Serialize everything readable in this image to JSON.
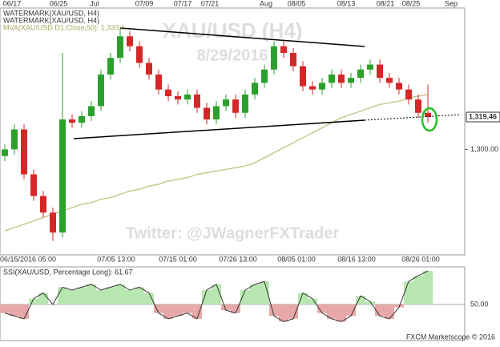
{
  "chart_data": {
    "type": "candlestick",
    "watermark_title": "XAU/USD (H4)",
    "watermark_date": "8/29/2016",
    "watermark_twitter": "Twitter: @JWagnerFXTrader",
    "legend": [
      "WATERMARK(XAU/USD, H4)",
      "WATERMARK(XAU/USD, H4)",
      "MVA(XAU/USD.D1.Close,50): 1,333.6"
    ],
    "top_labels": [
      "06/17",
      "06/25",
      "Jul",
      "07/09",
      "07/17",
      "07/21",
      "Aug",
      "08/05",
      "08/13",
      "08/21",
      "08/25",
      "Sep"
    ],
    "bottom_labels": [
      "06/15/2016 05:00",
      "07/05 13:00",
      "07/15 01:00",
      "07/26 13:00",
      "08/05 01:00",
      "08/16 13:00",
      "08/26 01:00"
    ],
    "open": [
      1296,
      1300,
      1312,
      1285,
      1272,
      1262,
      1250,
      1318,
      1316,
      1320,
      1326,
      1345,
      1355,
      1368,
      1362,
      1352,
      1345,
      1336,
      1332,
      1330,
      1333,
      1325,
      1318,
      1326,
      1330,
      1322,
      1333,
      1340,
      1348,
      1362,
      1358,
      1350,
      1338,
      1336,
      1340,
      1345,
      1340,
      1343,
      1348,
      1351,
      1343,
      1340,
      1336,
      1330,
      1322
    ],
    "high": [
      1303,
      1315,
      1315,
      1288,
      1275,
      1265,
      1358,
      1321,
      1323,
      1329,
      1348,
      1358,
      1373,
      1371,
      1365,
      1355,
      1348,
      1339,
      1335,
      1336,
      1336,
      1328,
      1329,
      1333,
      1333,
      1336,
      1343,
      1351,
      1365,
      1365,
      1361,
      1353,
      1341,
      1343,
      1348,
      1348,
      1346,
      1351,
      1354,
      1354,
      1346,
      1343,
      1339,
      1333,
      1339
    ],
    "low": [
      1293,
      1297,
      1282,
      1269,
      1259,
      1245,
      1247,
      1313,
      1313,
      1317,
      1323,
      1342,
      1352,
      1359,
      1349,
      1342,
      1333,
      1329,
      1327,
      1327,
      1322,
      1315,
      1315,
      1323,
      1319,
      1319,
      1330,
      1337,
      1345,
      1355,
      1347,
      1335,
      1333,
      1333,
      1337,
      1337,
      1337,
      1340,
      1345,
      1340,
      1337,
      1333,
      1327,
      1319,
      1316
    ],
    "close": [
      1300,
      1312,
      1285,
      1272,
      1262,
      1250,
      1318,
      1316,
      1320,
      1326,
      1345,
      1355,
      1368,
      1362,
      1352,
      1345,
      1336,
      1332,
      1330,
      1333,
      1325,
      1318,
      1326,
      1330,
      1322,
      1333,
      1340,
      1348,
      1362,
      1358,
      1350,
      1338,
      1336,
      1340,
      1345,
      1340,
      1343,
      1348,
      1351,
      1343,
      1340,
      1336,
      1330,
      1322,
      1319.46
    ],
    "up_color": "#2ca02c",
    "down_color": "#d62728",
    "mva": {
      "color": "#c8c890",
      "values": [
        1251,
        1253,
        1255,
        1257,
        1259,
        1261,
        1263,
        1265,
        1267,
        1268,
        1270,
        1271,
        1273,
        1275,
        1276,
        1278,
        1279,
        1281,
        1282,
        1283,
        1285,
        1286,
        1287,
        1288,
        1289,
        1290,
        1292,
        1295,
        1298,
        1301,
        1304,
        1307,
        1310,
        1313,
        1316,
        1319,
        1321,
        1323,
        1325,
        1327,
        1328,
        1329,
        1331,
        1332,
        1333
      ]
    },
    "ylim": [
      1236.6,
      1385
    ],
    "yticks": [
      {
        "value": 1300,
        "label": "1,300.00"
      }
    ],
    "last_price": {
      "value": 1319.46,
      "label": "1,319.46"
    },
    "ssi": {
      "title": "SSI(XAU/USD, Percentage Long): 61.67",
      "up_color": "#b8e6b0",
      "down_color": "#e8a8a8",
      "values": [
        47,
        46,
        45,
        52,
        54,
        50,
        56,
        55,
        56,
        57,
        55,
        56,
        57,
        55,
        56,
        54,
        47,
        45,
        46,
        47,
        45,
        55,
        57,
        48,
        47,
        55,
        57,
        58,
        46,
        44,
        45,
        54,
        52,
        47,
        45,
        44,
        46,
        53,
        51,
        46,
        45,
        49,
        58,
        60,
        61.67
      ],
      "ylim": [
        37.4,
        63.1
      ],
      "yticks": [
        {
          "value": 50,
          "label": "50.00"
        }
      ]
    },
    "footer": "FXCM Marketscope © 2016"
  }
}
